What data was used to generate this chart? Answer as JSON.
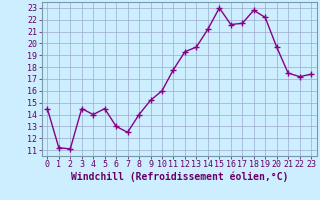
{
  "x": [
    0,
    1,
    2,
    3,
    4,
    5,
    6,
    7,
    8,
    9,
    10,
    11,
    12,
    13,
    14,
    15,
    16,
    17,
    18,
    19,
    20,
    21,
    22,
    23
  ],
  "y": [
    14.5,
    11.2,
    11.1,
    14.5,
    14.0,
    14.5,
    13.0,
    12.5,
    14.0,
    15.2,
    16.0,
    17.8,
    19.3,
    19.7,
    21.2,
    23.0,
    21.6,
    21.7,
    22.8,
    22.2,
    19.7,
    17.5,
    17.2,
    17.4
  ],
  "line_color": "#880088",
  "marker": "+",
  "markersize": 4,
  "linewidth": 1.0,
  "bg_color": "#cceeff",
  "grid_color": "#99aacc",
  "xlabel": "Windchill (Refroidissement éolien,°C)",
  "xlabel_fontsize": 7,
  "tick_fontsize": 6,
  "ytick_labels": [
    "11",
    "12",
    "13",
    "14",
    "15",
    "16",
    "17",
    "18",
    "19",
    "20",
    "21",
    "22",
    "23"
  ],
  "xtick_labels": [
    "0",
    "1",
    "2",
    "3",
    "4",
    "5",
    "6",
    "7",
    "8",
    "9",
    "10",
    "11",
    "12",
    "13",
    "14",
    "15",
    "16",
    "17",
    "18",
    "19",
    "20",
    "21",
    "22",
    "23"
  ]
}
